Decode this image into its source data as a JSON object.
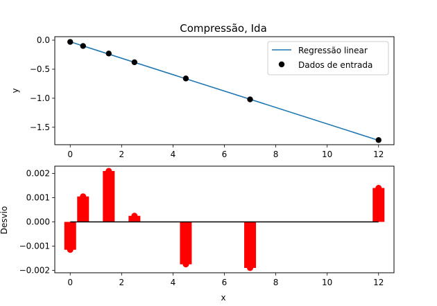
{
  "chart_data": [
    {
      "type": "line",
      "title": "Compressão, Ida",
      "xlabel": "",
      "ylabel": "y",
      "xlim": [
        -0.6,
        12.6
      ],
      "ylim": [
        -1.8,
        0.06
      ],
      "xticks": [
        0,
        2,
        4,
        6,
        8,
        10,
        12
      ],
      "yticks": [
        0.0,
        -0.5,
        -1.0,
        -1.5
      ],
      "ytick_labels": [
        "0.0",
        "−0.5",
        "−1.0",
        "−1.5"
      ],
      "grid": false,
      "legend_position": "top-right",
      "series": [
        {
          "name": "Regressão linear",
          "kind": "line",
          "color": "#1f77b4",
          "x": [
            0,
            12
          ],
          "y": [
            -0.028,
            -1.725
          ]
        },
        {
          "name": "Dados de entrada",
          "kind": "scatter",
          "color": "#000000",
          "x": [
            0,
            0.5,
            1.5,
            2.5,
            4.5,
            7,
            12
          ],
          "y": [
            -0.03,
            -0.1,
            -0.23,
            -0.38,
            -0.66,
            -1.02,
            -1.72
          ]
        }
      ]
    },
    {
      "type": "bar",
      "title": "",
      "xlabel": "x",
      "ylabel": "Desvio",
      "xlim": [
        -0.6,
        12.6
      ],
      "ylim": [
        -0.0021,
        0.0023
      ],
      "xticks": [
        0,
        2,
        4,
        6,
        8,
        10,
        12
      ],
      "yticks": [
        0.002,
        0.001,
        0.0,
        -0.001,
        -0.002
      ],
      "ytick_labels": [
        "0.002",
        "0.001",
        "0.000",
        "−0.001",
        "−0.002"
      ],
      "grid": false,
      "bar_color": "#ff0000",
      "baseline_color": "#000000",
      "x": [
        0,
        0.5,
        1.5,
        2.5,
        4.5,
        7,
        12
      ],
      "values": [
        -0.00115,
        0.00105,
        0.0021,
        0.00025,
        -0.00175,
        -0.0019,
        0.0014
      ]
    }
  ]
}
